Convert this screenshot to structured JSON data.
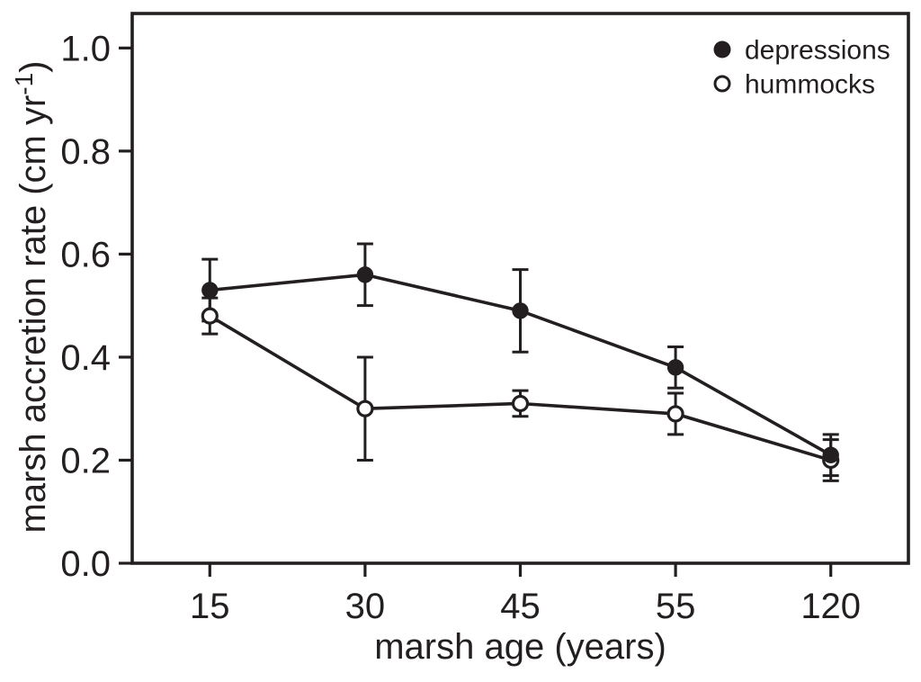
{
  "figure": {
    "background": "#ffffff",
    "ink_color": "#231f20"
  },
  "chart_data": {
    "type": "line",
    "title": "",
    "xlabel": "marsh age (years)",
    "ylabel": "marsh accretion rate (cm yr⁻¹)",
    "ylabel_parts": {
      "pre": "marsh accretion rate (cm yr",
      "sup": "-1",
      "post": ")"
    },
    "categories": [
      "15",
      "30",
      "45",
      "55",
      "120"
    ],
    "x_axis_type": "categorical",
    "yticks": [
      0.0,
      0.2,
      0.4,
      0.6,
      0.8,
      1.0
    ],
    "ytick_labels": [
      "0.0",
      "0.2",
      "0.4",
      "0.6",
      "0.8",
      "1.0"
    ],
    "ylim": [
      0,
      1.067
    ],
    "grid": false,
    "legend_position": "top-right-inside",
    "series": [
      {
        "name": "depressions",
        "marker": "filled-circle",
        "values": [
          0.53,
          0.56,
          0.49,
          0.38,
          0.21
        ],
        "errors": [
          0.06,
          0.06,
          0.08,
          0.04,
          0.04
        ]
      },
      {
        "name": "hummocks",
        "marker": "open-circle",
        "values": [
          0.48,
          0.3,
          0.31,
          0.29,
          0.2
        ],
        "errors": [
          0.035,
          0.1,
          0.025,
          0.04,
          0.04
        ]
      }
    ]
  }
}
